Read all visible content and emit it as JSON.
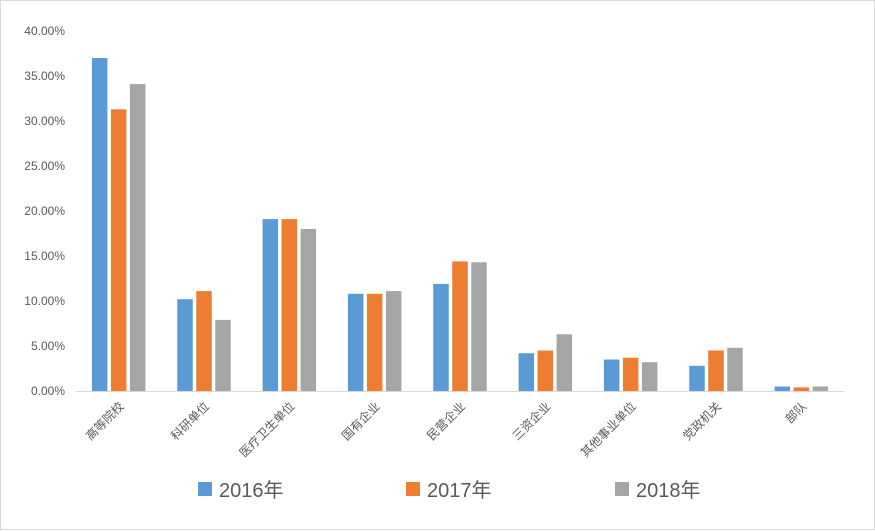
{
  "chart_data": {
    "type": "bar",
    "title": "",
    "xlabel": "",
    "ylabel": "",
    "ylim": [
      0,
      0.4
    ],
    "yticks": [
      0,
      0.05,
      0.1,
      0.15,
      0.2,
      0.25,
      0.3,
      0.35,
      0.4
    ],
    "ytick_labels": [
      "0.00%",
      "5.00%",
      "10.00%",
      "15.00%",
      "20.00%",
      "25.00%",
      "30.00%",
      "35.00%",
      "40.00%"
    ],
    "categories": [
      "高等院校",
      "科研单位",
      "医疗卫生单位",
      "国有企业",
      "民营企业",
      "三资企业",
      "其他事业单位",
      "党政机关",
      "部队"
    ],
    "series": [
      {
        "name": "2016年",
        "color": "#5B9BD5",
        "values": [
          0.37,
          0.102,
          0.191,
          0.108,
          0.119,
          0.042,
          0.035,
          0.028,
          0.005
        ]
      },
      {
        "name": "2017年",
        "color": "#ED7D31",
        "values": [
          0.313,
          0.111,
          0.191,
          0.108,
          0.144,
          0.045,
          0.037,
          0.045,
          0.004
        ]
      },
      {
        "name": "2018年",
        "color": "#A5A5A5",
        "values": [
          0.341,
          0.079,
          0.18,
          0.111,
          0.143,
          0.063,
          0.032,
          0.048,
          0.005
        ]
      }
    ],
    "grid": false,
    "legend_position": "bottom"
  }
}
